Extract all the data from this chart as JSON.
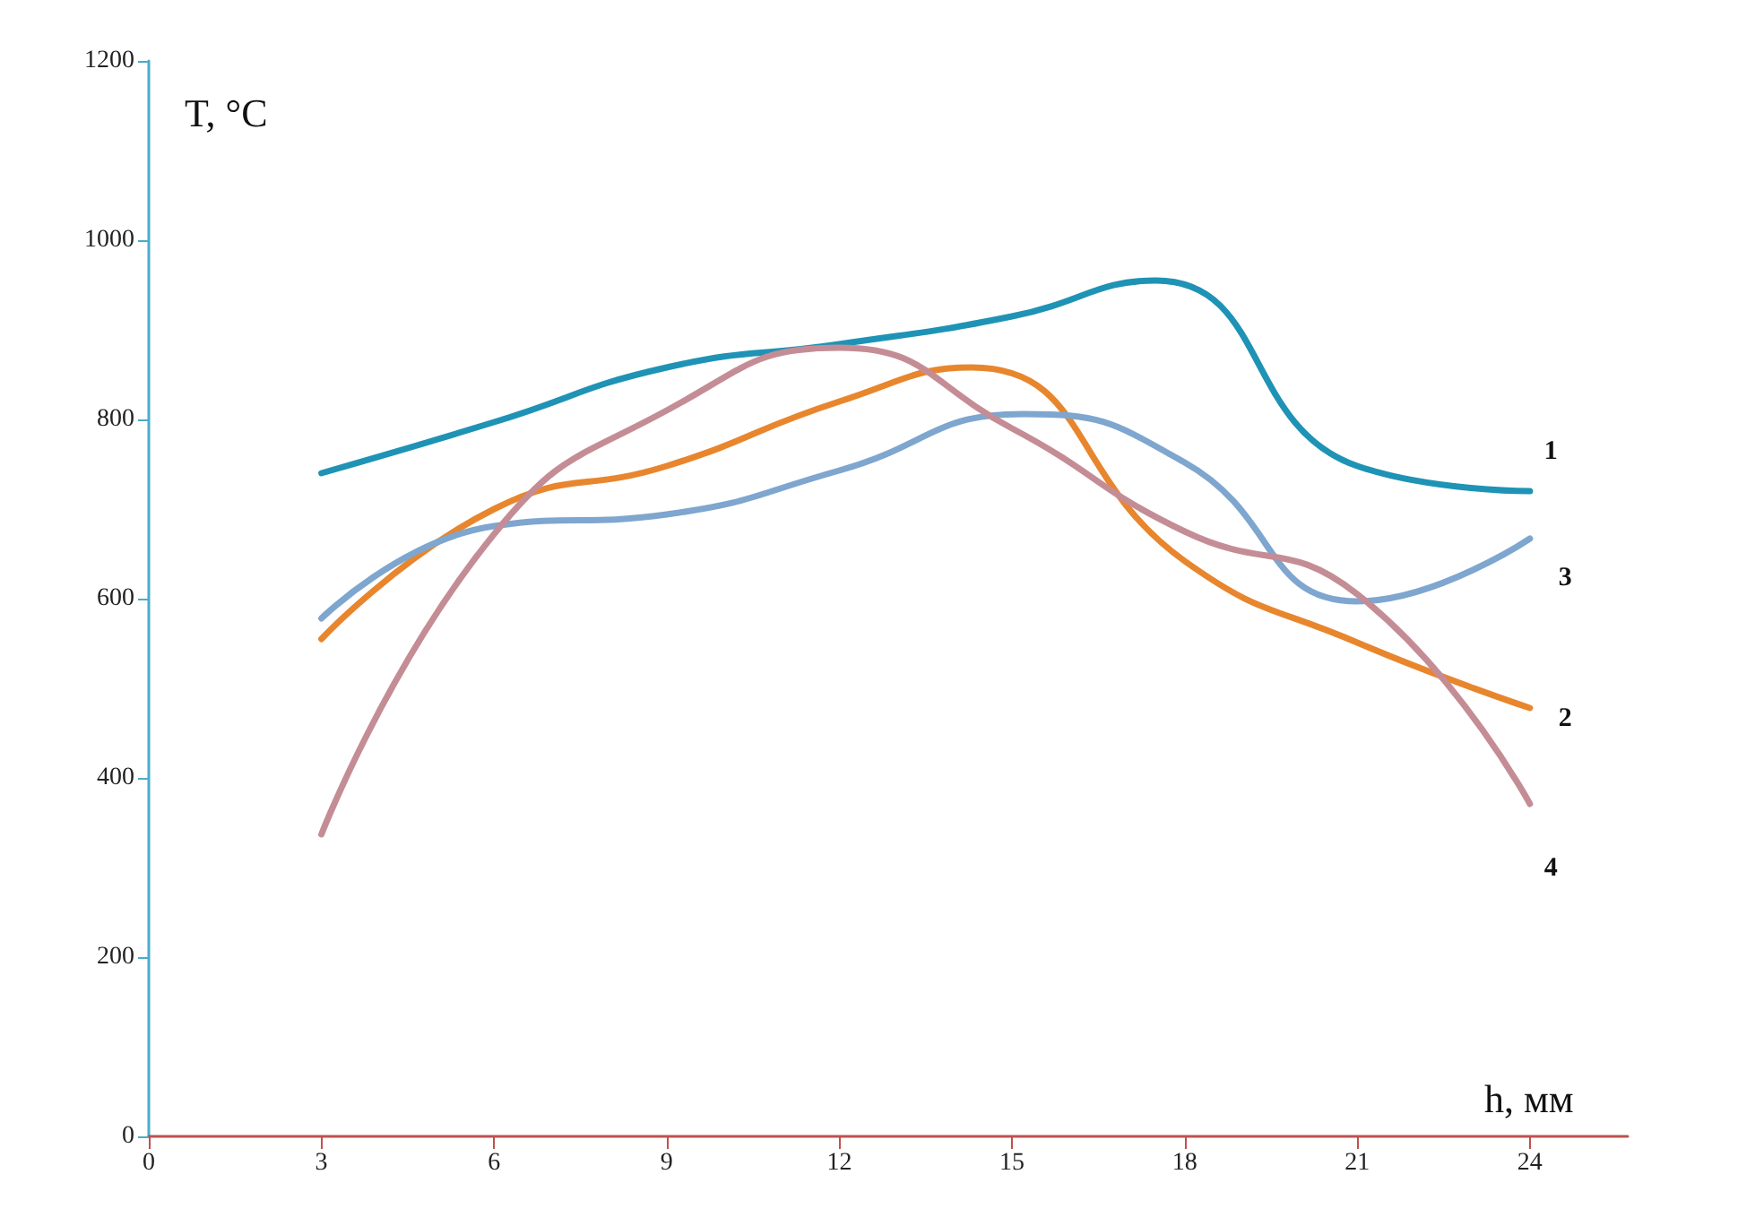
{
  "chart_data": {
    "type": "line",
    "xlabel": "h, мм",
    "ylabel": "T, °C",
    "xlim": [
      0,
      25.7
    ],
    "xticks": [
      0,
      3,
      6,
      9,
      12,
      15,
      18,
      21,
      24
    ],
    "ylim": [
      0,
      1200
    ],
    "yticks": [
      0,
      200,
      400,
      600,
      800,
      1000,
      1200
    ],
    "grid": false,
    "legend": false,
    "marker": "none",
    "line_style": "solid",
    "series": [
      {
        "name": "1",
        "color": "#1f93b5",
        "x": [
          3,
          6,
          9,
          12,
          15,
          17.5,
          21,
          24
        ],
        "values": [
          740,
          797,
          858,
          884,
          915,
          955,
          748,
          720
        ]
      },
      {
        "name": "2",
        "color": "#e8862e",
        "x": [
          3,
          6,
          9,
          12,
          14.3,
          18,
          21,
          24
        ],
        "values": [
          555,
          700,
          748,
          820,
          858,
          642,
          551,
          478
        ]
      },
      {
        "name": "3",
        "color": "#7ea6cf",
        "x": [
          3,
          6,
          9,
          12,
          15.2,
          18,
          21,
          24
        ],
        "values": [
          578,
          681,
          694,
          743,
          806,
          752,
          597,
          667
        ]
      },
      {
        "name": "4",
        "color": "#c48d96",
        "x": [
          3,
          6,
          9,
          12,
          15,
          18,
          21,
          24
        ],
        "values": [
          337,
          672,
          810,
          880,
          790,
          675,
          605,
          371
        ]
      }
    ]
  }
}
